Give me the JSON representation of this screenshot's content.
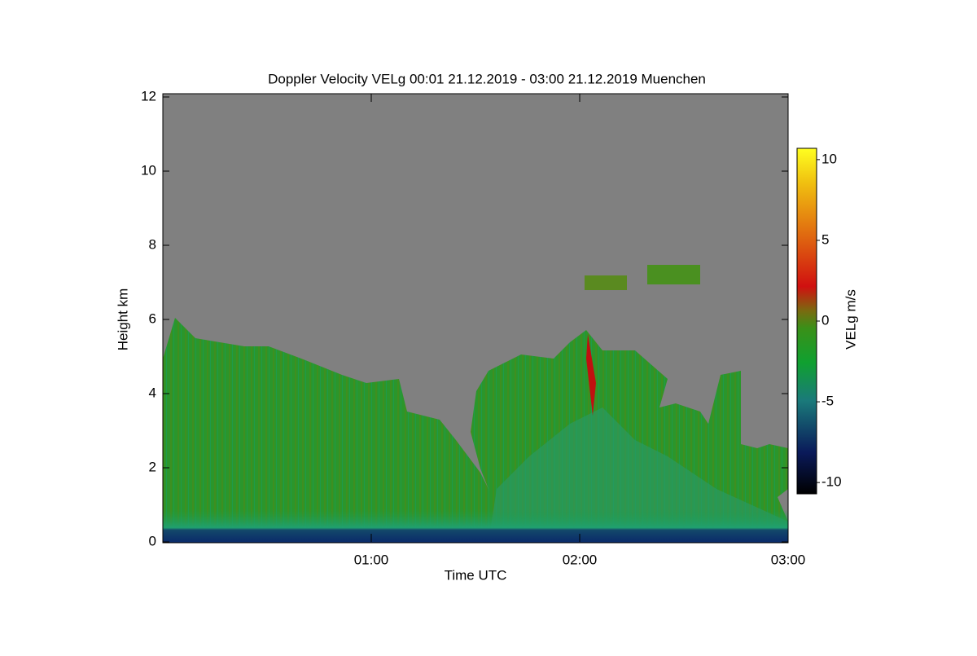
{
  "chart_data": {
    "type": "time-height",
    "title": "Doppler Velocity VELg   00:01 21.12.2019 - 03:00 21.12.2019 Muenchen",
    "x_label": "Time UTC",
    "y_label": "Height km",
    "xlim": [
      0,
      180
    ],
    "xticks": [
      {
        "value": 60,
        "label": "01:00"
      },
      {
        "value": 120,
        "label": "02:00"
      },
      {
        "value": 180,
        "label": "03:00"
      }
    ],
    "ylim": [
      0,
      12
    ],
    "yticks": [
      0,
      2,
      4,
      6,
      8,
      10,
      12
    ],
    "colorbar": {
      "label": "VELg m/s",
      "lim": [
        -10.7,
        10.7
      ],
      "ticks": [
        -10,
        -5,
        0,
        5,
        10
      ]
    }
  }
}
